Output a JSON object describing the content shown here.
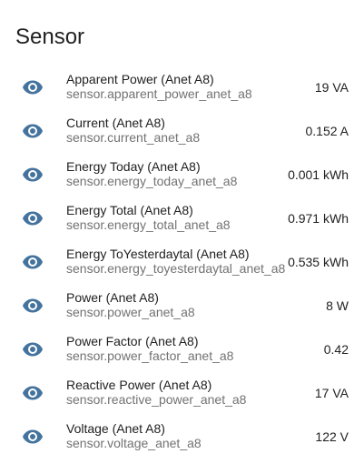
{
  "card": {
    "title": "Sensor"
  },
  "colors": {
    "icon": "#44739e",
    "primary_text": "#212121",
    "secondary_text": "#727272"
  },
  "entities": [
    {
      "name": "Apparent Power (Anet A8)",
      "entity_id": "sensor.apparent_power_anet_a8",
      "state": "19 VA",
      "icon": "eye-icon"
    },
    {
      "name": "Current (Anet A8)",
      "entity_id": "sensor.current_anet_a8",
      "state": "0.152 A",
      "icon": "eye-icon"
    },
    {
      "name": "Energy Today (Anet A8)",
      "entity_id": "sensor.energy_today_anet_a8",
      "state": "0.001 kWh",
      "icon": "eye-icon"
    },
    {
      "name": "Energy Total (Anet A8)",
      "entity_id": "sensor.energy_total_anet_a8",
      "state": "0.971 kWh",
      "icon": "eye-icon"
    },
    {
      "name": "Energy ToYesterdaytal (Anet A8)",
      "entity_id": "sensor.energy_toyesterdaytal_anet_a8",
      "state": "0.535 kWh",
      "icon": "eye-icon"
    },
    {
      "name": "Power (Anet A8)",
      "entity_id": "sensor.power_anet_a8",
      "state": "8 W",
      "icon": "eye-icon"
    },
    {
      "name": "Power Factor (Anet A8)",
      "entity_id": "sensor.power_factor_anet_a8",
      "state": "0.42",
      "icon": "eye-icon"
    },
    {
      "name": "Reactive Power (Anet A8)",
      "entity_id": "sensor.reactive_power_anet_a8",
      "state": "17 VA",
      "icon": "eye-icon"
    },
    {
      "name": "Voltage (Anet A8)",
      "entity_id": "sensor.voltage_anet_a8",
      "state": "122 V",
      "icon": "eye-icon"
    }
  ]
}
